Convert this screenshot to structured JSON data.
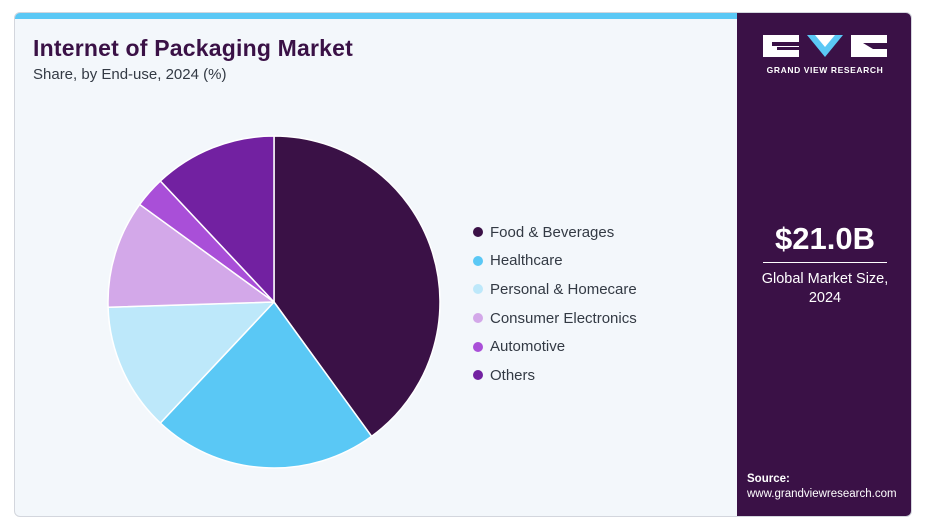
{
  "header": {
    "title": "Internet of Packaging Market",
    "subtitle": "Share, by End-use, 2024 (%)"
  },
  "chart_data": {
    "type": "pie",
    "title": "Internet of Packaging Market",
    "subtitle": "Share, by End-use, 2024 (%)",
    "legend_position": "right",
    "start_angle_deg": 0,
    "direction": "clockwise",
    "categories": [
      "Food & Beverages",
      "Healthcare",
      "Personal & Homecare",
      "Consumer Electronics",
      "Automotive",
      "Others"
    ],
    "values": [
      40,
      22,
      12.5,
      10.5,
      3,
      12
    ],
    "colors": [
      "#3a1146",
      "#5ac8f5",
      "#bde8fa",
      "#d3a8e9",
      "#a94fd8",
      "#7221a1"
    ]
  },
  "sidebar": {
    "logo_text": "GRAND VIEW RESEARCH",
    "market_size_value": "$21.0B",
    "market_size_caption": "Global Market Size, 2024",
    "source_label": "Source:",
    "source_url": "www.grandviewresearch.com"
  }
}
